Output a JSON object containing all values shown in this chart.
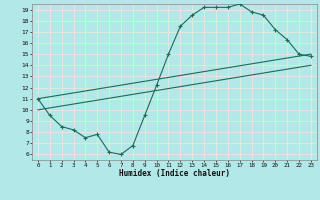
{
  "xlabel": "Humidex (Indice chaleur)",
  "bg_color": "#b3e8e8",
  "grid_color": "#e8e8d8",
  "line_color": "#1a6b5a",
  "xlim": [
    -0.5,
    23.5
  ],
  "ylim": [
    5.5,
    19.5
  ],
  "xticks": [
    0,
    1,
    2,
    3,
    4,
    5,
    6,
    7,
    8,
    9,
    10,
    11,
    12,
    13,
    14,
    15,
    16,
    17,
    18,
    19,
    20,
    21,
    22,
    23
  ],
  "yticks": [
    6,
    7,
    8,
    9,
    10,
    11,
    12,
    13,
    14,
    15,
    16,
    17,
    18,
    19
  ],
  "line1_x": [
    0,
    1,
    2,
    3,
    4,
    5,
    6,
    7,
    8,
    9,
    10,
    11,
    12,
    13,
    14,
    15,
    16,
    17,
    18,
    19,
    20,
    21,
    22,
    23
  ],
  "line1_y": [
    11,
    9.5,
    8.5,
    8.2,
    7.5,
    7.8,
    6.2,
    6.0,
    6.8,
    9.5,
    12.2,
    15.0,
    17.5,
    18.5,
    19.2,
    19.2,
    19.2,
    19.5,
    18.8,
    18.5,
    17.2,
    16.3,
    15.0,
    14.8
  ],
  "line2_x": [
    0,
    23
  ],
  "line2_y": [
    11.0,
    15.0
  ],
  "line3_x": [
    0,
    23
  ],
  "line3_y": [
    10.0,
    14.0
  ]
}
